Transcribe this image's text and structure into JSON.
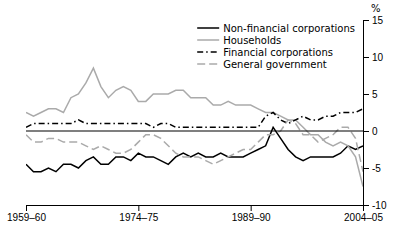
{
  "chart_data": {
    "type": "line",
    "ylabel": "%",
    "categories": [
      "1959–60",
      null,
      null,
      null,
      null,
      null,
      null,
      null,
      null,
      null,
      null,
      null,
      null,
      null,
      null,
      "1974–75",
      null,
      null,
      null,
      null,
      null,
      null,
      null,
      null,
      null,
      null,
      null,
      null,
      null,
      null,
      "1989–90",
      null,
      null,
      null,
      null,
      null,
      null,
      null,
      null,
      null,
      null,
      null,
      null,
      null,
      null,
      "2004–05"
    ],
    "ylim": [
      -10,
      15
    ],
    "yticks": [
      -10,
      -5,
      0,
      5,
      10,
      15
    ],
    "legend": "upper right",
    "series": [
      {
        "name": "Non-financial corporations",
        "color": "#000000",
        "line_style": "solid",
        "values": [
          -4.5,
          -5.5,
          -5.5,
          -5.0,
          -5.5,
          -4.5,
          -4.5,
          -5.0,
          -4.0,
          -3.5,
          -4.5,
          -4.5,
          -3.5,
          -3.5,
          -4.0,
          -3.0,
          -3.5,
          -3.5,
          -4.0,
          -4.5,
          -3.5,
          -3.0,
          -3.5,
          -3.0,
          -3.5,
          -3.5,
          -3.0,
          -3.5,
          -3.5,
          -3.5,
          -3.0,
          -2.5,
          -2.0,
          0.5,
          -1.0,
          -2.5,
          -3.5,
          -4.0,
          -3.5,
          -3.5,
          -3.5,
          -3.5,
          -3.0,
          -2.0,
          -2.5,
          -2.0
        ]
      },
      {
        "name": "Households",
        "color": "#aaaaaa",
        "line_style": "solid",
        "values": [
          2.5,
          2.0,
          2.5,
          3.0,
          3.0,
          2.5,
          4.5,
          5.0,
          6.5,
          8.5,
          6.0,
          4.5,
          5.5,
          6.0,
          5.5,
          4.0,
          4.0,
          5.0,
          5.0,
          5.0,
          5.5,
          5.5,
          4.5,
          4.5,
          4.5,
          3.5,
          3.5,
          4.0,
          3.5,
          3.5,
          3.5,
          3.0,
          2.5,
          2.5,
          2.0,
          1.5,
          1.5,
          0.5,
          -0.5,
          -0.5,
          -1.5,
          -2.0,
          -1.5,
          -2.0,
          -3.5,
          -7.5
        ]
      },
      {
        "name": "Financial corporations",
        "color": "#000000",
        "line_style": "dashdot",
        "values": [
          0.5,
          1.0,
          1.0,
          1.0,
          1.0,
          1.0,
          1.0,
          1.5,
          1.0,
          1.0,
          1.0,
          1.0,
          1.0,
          1.0,
          1.0,
          1.0,
          1.0,
          0.5,
          1.0,
          1.0,
          0.5,
          0.5,
          0.5,
          0.5,
          0.5,
          0.5,
          0.5,
          0.5,
          0.5,
          0.5,
          0.5,
          0.5,
          2.0,
          2.5,
          1.5,
          1.0,
          1.5,
          2.0,
          1.5,
          1.5,
          2.0,
          2.0,
          2.5,
          2.5,
          2.5,
          3.0
        ]
      },
      {
        "name": "General government",
        "color": "#aaaaaa",
        "line_style": "dashed",
        "values": [
          -0.5,
          -1.5,
          -1.5,
          -1.0,
          -1.0,
          -1.5,
          -1.5,
          -1.5,
          -2.0,
          -2.5,
          -2.0,
          -2.5,
          -3.0,
          -3.0,
          -2.5,
          -1.5,
          -0.5,
          -0.5,
          -1.0,
          -2.0,
          -3.0,
          -3.5,
          -3.5,
          -3.5,
          -4.0,
          -4.5,
          -4.0,
          -3.5,
          -3.0,
          -2.5,
          -2.5,
          -1.5,
          -0.5,
          -0.5,
          0.0,
          1.5,
          1.0,
          -0.5,
          -0.5,
          -1.5,
          -1.0,
          -0.5,
          0.5,
          0.5,
          -1.0,
          -5.5
        ]
      }
    ]
  }
}
